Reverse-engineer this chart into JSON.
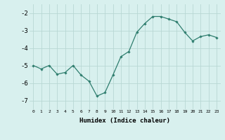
{
  "x": [
    0,
    1,
    2,
    3,
    4,
    5,
    6,
    7,
    8,
    9,
    10,
    11,
    12,
    13,
    14,
    15,
    16,
    17,
    18,
    19,
    20,
    21,
    22,
    23
  ],
  "y": [
    -5.0,
    -5.2,
    -5.0,
    -5.5,
    -5.4,
    -5.0,
    -5.55,
    -5.9,
    -6.75,
    -6.55,
    -5.55,
    -4.5,
    -4.2,
    -3.1,
    -2.6,
    -2.2,
    -2.2,
    -2.35,
    -2.5,
    -3.1,
    -3.6,
    -3.35,
    -3.25,
    -3.4
  ],
  "xlabel": "Humidex (Indice chaleur)",
  "ylim": [
    -7.5,
    -1.5
  ],
  "xlim": [
    -0.5,
    23.5
  ],
  "yticks": [
    -7,
    -6,
    -5,
    -4,
    -3,
    -2
  ],
  "xticks": [
    0,
    1,
    2,
    3,
    4,
    5,
    6,
    7,
    8,
    9,
    10,
    11,
    12,
    13,
    14,
    15,
    16,
    17,
    18,
    19,
    20,
    21,
    22,
    23
  ],
  "line_color": "#2e7d6e",
  "marker": "D",
  "marker_size": 1.8,
  "bg_color": "#d8f0ee",
  "grid_color": "#b8d8d4",
  "face_color": "#d8f0ee",
  "xlabel_fontsize": 6.5,
  "xtick_fontsize": 4.5,
  "ytick_fontsize": 6.5
}
